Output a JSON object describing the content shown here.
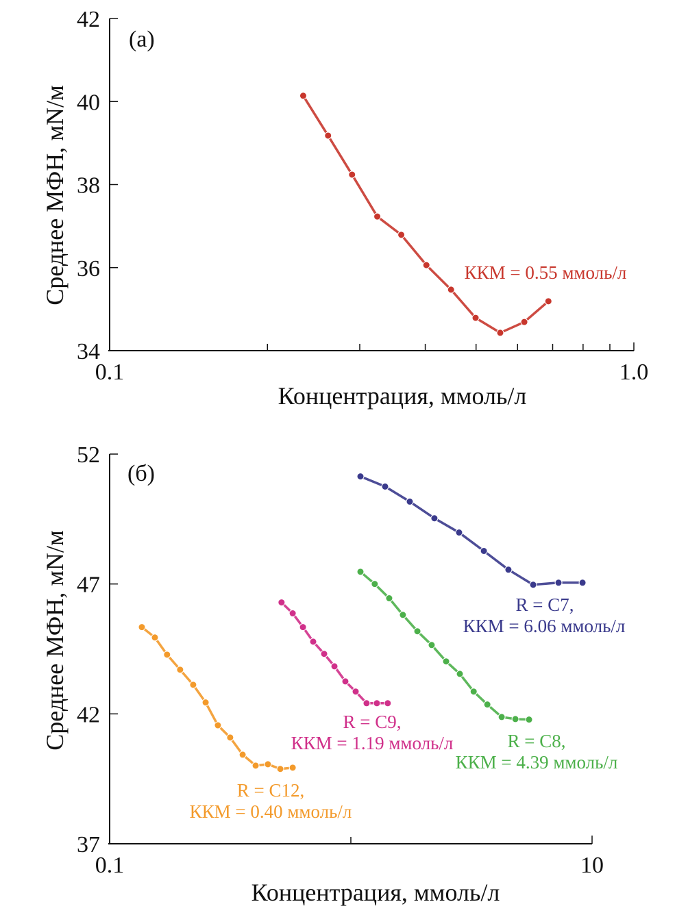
{
  "chart_data": [
    {
      "type": "line",
      "panel_label": "(a)",
      "xlabel": "Концентрация, ммоль/л",
      "ylabel": "Среднее МФН, мN/м",
      "xscale": "log",
      "xlim": [
        0.1,
        1.0
      ],
      "ylim": [
        34,
        42
      ],
      "xticks": [
        0.1,
        1.0
      ],
      "xtick_labels": [
        "0.1",
        "1.0"
      ],
      "x_minor_ticks": [
        0.2,
        0.3,
        0.4,
        0.5,
        0.6,
        0.7,
        0.8,
        0.9
      ],
      "yticks": [
        34,
        36,
        38,
        40,
        42
      ],
      "ytick_labels": [
        "34",
        "36",
        "38",
        "40",
        "42"
      ],
      "grid": false,
      "series": [
        {
          "color": "#c8372d",
          "x": [
            0.234,
            0.261,
            0.29,
            0.324,
            0.36,
            0.402,
            0.448,
            0.499,
            0.556,
            0.618,
            0.687
          ],
          "y": [
            40.14,
            39.18,
            38.24,
            37.23,
            36.79,
            36.06,
            35.47,
            34.79,
            34.43,
            34.69,
            35.19
          ],
          "annotation": [
            "ККМ = 0.55 ммоль/л"
          ]
        }
      ]
    },
    {
      "type": "line",
      "panel_label": "(б)",
      "xlabel": "Концентрация, ммоль/л",
      "ylabel": "Среднее МФН, мN/м",
      "xscale": "log",
      "xlim": [
        0.1,
        10
      ],
      "ylim": [
        37,
        52
      ],
      "xticks": [
        0.1,
        10
      ],
      "xtick_labels": [
        "0.1",
        "10"
      ],
      "x_minor_ticks": [
        1
      ],
      "yticks": [
        37,
        42,
        47,
        52
      ],
      "ytick_labels": [
        "37",
        "42",
        "47",
        "52"
      ],
      "grid": false,
      "series": [
        {
          "color": "#f39a2b",
          "x": [
            0.136,
            0.154,
            0.173,
            0.196,
            0.222,
            0.25,
            0.281,
            0.316,
            0.356,
            0.403,
            0.453,
            0.51,
            0.574
          ],
          "y": [
            45.34,
            44.94,
            44.28,
            43.7,
            43.12,
            42.44,
            41.56,
            41.09,
            40.43,
            40.01,
            40.06,
            39.88,
            39.93
          ],
          "annotation": [
            "R = C12,",
            "ККМ = 0.40 ммоль/л"
          ]
        },
        {
          "color": "#d0308a",
          "x": [
            0.516,
            0.574,
            0.633,
            0.698,
            0.775,
            0.855,
            0.949,
            1.047,
            1.162,
            1.282,
            1.422
          ],
          "y": [
            46.29,
            45.87,
            45.34,
            44.78,
            44.31,
            43.83,
            43.25,
            42.86,
            42.41,
            42.41,
            42.41
          ],
          "annotation": [
            "R = C9,",
            "ККМ = 1.19 ммоль/л"
          ]
        },
        {
          "color": "#4cb04a",
          "x": [
            1.096,
            1.256,
            1.442,
            1.643,
            1.887,
            2.163,
            2.483,
            2.83,
            3.23,
            3.68,
            4.22,
            4.81,
            5.48
          ],
          "y": [
            47.47,
            47.0,
            46.45,
            45.81,
            45.18,
            44.65,
            44.02,
            43.54,
            42.86,
            42.36,
            41.88,
            41.8,
            41.78
          ],
          "annotation": [
            "R = C8,",
            "ККМ = 4.39 ммоль/л"
          ]
        },
        {
          "color": "#3a3a8c",
          "x": [
            1.096,
            1.387,
            1.755,
            2.22,
            2.81,
            3.56,
            4.5,
            5.7,
            7.26,
            9.13
          ],
          "y": [
            51.14,
            50.75,
            50.17,
            49.53,
            48.98,
            48.27,
            47.55,
            46.97,
            47.05,
            47.05
          ],
          "annotation": [
            "R = C7,",
            "ККМ = 6.06 ммоль/л"
          ]
        }
      ]
    }
  ]
}
